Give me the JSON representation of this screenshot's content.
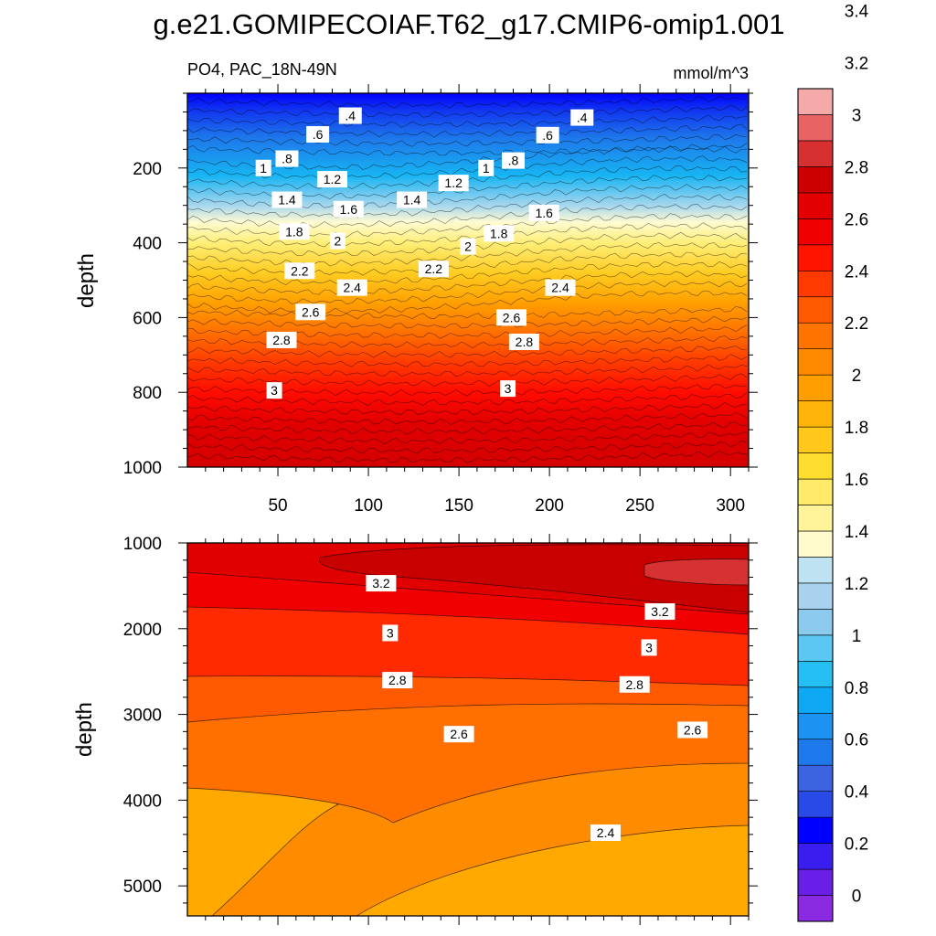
{
  "chart_data": {
    "type": "contour",
    "title": "g.e21.GOMIPECOIAF.T62_g17.CMIP6-omip1.001",
    "variable_label": "PO4, PAC_18N-49N",
    "units": "mmol/m^3",
    "colorbar": {
      "levels": [
        0,
        0.2,
        0.4,
        0.6,
        0.8,
        1,
        1.2,
        1.4,
        1.6,
        1.8,
        2,
        2.2,
        2.4,
        2.6,
        2.8,
        3,
        3.2,
        3.4
      ],
      "tick_labels": [
        "0",
        "0.2",
        "0.4",
        "0.6",
        "0.8",
        "1",
        "1.2",
        "1.4",
        "1.6",
        "1.8",
        "2",
        "2.2",
        "2.4",
        "2.6",
        "2.8",
        "3",
        "3.2",
        "3.4"
      ],
      "colors": [
        "#8a2be2",
        "#6a1fe6",
        "#3a1ef0",
        "#0000ff",
        "#2a4ae8",
        "#3c64e0",
        "#1e7aea",
        "#1c92f2",
        "#0fa8f4",
        "#25bff4",
        "#5ac8f2",
        "#8ccaee",
        "#a8d2ee",
        "#bee2f2",
        "#fffbcc",
        "#fff49a",
        "#ffea6a",
        "#ffdc30",
        "#ffc81a",
        "#ffb40a",
        "#ff9e00",
        "#ff8a00",
        "#ff7400",
        "#ff5a00",
        "#ff3a00",
        "#ff1400",
        "#f00000",
        "#e20000",
        "#cc0000",
        "#d63030",
        "#e86464",
        "#f5aaaa"
      ]
    },
    "panels": [
      {
        "name": "upper",
        "ylabel": "depth",
        "xlim": [
          0,
          310
        ],
        "ylim": [
          1000,
          0
        ],
        "x_ticks": [
          50,
          100,
          150,
          200,
          250,
          300
        ],
        "x_tick_labels": [
          "50",
          "100",
          "150",
          "200",
          "250",
          "300"
        ],
        "y_ticks": [
          200,
          400,
          600,
          800,
          1000
        ],
        "y_tick_labels": [
          "200",
          "400",
          "600",
          "800",
          "1000"
        ],
        "contour_labels": [
          {
            "text": ".4",
            "x": 90,
            "depth": 60
          },
          {
            "text": ".4",
            "x": 218,
            "depth": 65
          },
          {
            "text": ".6",
            "x": 72,
            "depth": 110
          },
          {
            "text": ".6",
            "x": 199,
            "depth": 112
          },
          {
            "text": ".8",
            "x": 55,
            "depth": 175
          },
          {
            "text": ".8",
            "x": 180,
            "depth": 180
          },
          {
            "text": "1",
            "x": 42,
            "depth": 200
          },
          {
            "text": "1",
            "x": 165,
            "depth": 200
          },
          {
            "text": "1.2",
            "x": 80,
            "depth": 230
          },
          {
            "text": "1.2",
            "x": 147,
            "depth": 240
          },
          {
            "text": "1.4",
            "x": 55,
            "depth": 285
          },
          {
            "text": "1.4",
            "x": 124,
            "depth": 285
          },
          {
            "text": "1.6",
            "x": 89,
            "depth": 310
          },
          {
            "text": "1.6",
            "x": 197,
            "depth": 320
          },
          {
            "text": "1.8",
            "x": 59,
            "depth": 370
          },
          {
            "text": "1.8",
            "x": 172,
            "depth": 375
          },
          {
            "text": "2",
            "x": 83,
            "depth": 395
          },
          {
            "text": "2",
            "x": 155,
            "depth": 410
          },
          {
            "text": "2.2",
            "x": 62,
            "depth": 475
          },
          {
            "text": "2.2",
            "x": 136,
            "depth": 470
          },
          {
            "text": "2.4",
            "x": 91,
            "depth": 520
          },
          {
            "text": "2.4",
            "x": 206,
            "depth": 520
          },
          {
            "text": "2.6",
            "x": 68,
            "depth": 585
          },
          {
            "text": "2.6",
            "x": 179,
            "depth": 600
          },
          {
            "text": "2.8",
            "x": 52,
            "depth": 660
          },
          {
            "text": "2.8",
            "x": 186,
            "depth": 665
          },
          {
            "text": "3",
            "x": 48,
            "depth": 795
          },
          {
            "text": "3",
            "x": 177,
            "depth": 790
          }
        ]
      },
      {
        "name": "lower",
        "ylabel": "depth",
        "xlim": [
          0,
          310
        ],
        "ylim": [
          5350,
          1000
        ],
        "y_ticks": [
          1000,
          2000,
          3000,
          4000,
          5000
        ],
        "y_tick_labels": [
          "1000",
          "2000",
          "3000",
          "4000",
          "5000"
        ],
        "contour_labels": [
          {
            "text": "3.2",
            "x": 107,
            "depth": 1470
          },
          {
            "text": "3.2",
            "x": 261,
            "depth": 1800
          },
          {
            "text": "3",
            "x": 112,
            "depth": 2050
          },
          {
            "text": "3",
            "x": 255,
            "depth": 2220
          },
          {
            "text": "2.8",
            "x": 116,
            "depth": 2600
          },
          {
            "text": "2.8",
            "x": 247,
            "depth": 2650
          },
          {
            "text": "2.6",
            "x": 150,
            "depth": 3230
          },
          {
            "text": "2.6",
            "x": 279,
            "depth": 3180
          },
          {
            "text": "2.4",
            "x": 231,
            "depth": 4380
          }
        ]
      }
    ]
  }
}
